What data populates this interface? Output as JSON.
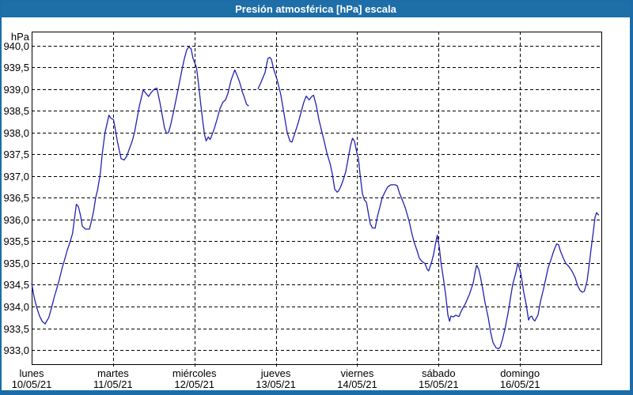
{
  "window": {
    "title": "Presión atmosférica [hPa] escala"
  },
  "colors": {
    "titlebar": "#1E6EA8",
    "window_frame": "#1B6CA8",
    "plot_background": "#FFFFFF",
    "plot_border": "#000000",
    "gridline": "#000000",
    "line": "#2222B2",
    "title_text": "#FFFFFF",
    "axis_text": "#000000"
  },
  "chart_data": {
    "type": "line",
    "title": "Presión atmosférica [hPa] escala",
    "ylabel": "hPa",
    "xlabel": "",
    "ylim": [
      933.0,
      940.0
    ],
    "ytick_step": 0.5,
    "y_tick_labels": [
      "940,0",
      "939,5",
      "939,0",
      "938,5",
      "938,0",
      "937,5",
      "937,0",
      "936,5",
      "936,0",
      "935,5",
      "935,0",
      "934,5",
      "934,0",
      "933,5",
      "933,0"
    ],
    "xlim_days": [
      0,
      7
    ],
    "x_days": [
      {
        "weekday": "lunes",
        "date": "10/05/21"
      },
      {
        "weekday": "martes",
        "date": "11/05/21"
      },
      {
        "weekday": "miércoles",
        "date": "12/05/21"
      },
      {
        "weekday": "jueves",
        "date": "13/05/21"
      },
      {
        "weekday": "viernes",
        "date": "14/05/21"
      },
      {
        "weekday": "sábado",
        "date": "15/05/21"
      },
      {
        "weekday": "domingo",
        "date": "16/05/21"
      }
    ],
    "grid": "dashed horizontal line at every 0.5 hPa, dashed vertical line at every day start",
    "legend": "none",
    "series": [
      {
        "name": "presión atmosférica",
        "units": "hPa",
        "x_units": "days since lunes 10/05/21 00:00",
        "note": "two segments: data gap Wednesday evening between t=2.667 and t=2.78",
        "segments": [
          [
            [
              0,
              934.53
            ],
            [
              0.032,
              934.2
            ],
            [
              0.065,
              933.96
            ],
            [
              0.097,
              933.78
            ],
            [
              0.129,
              933.66
            ],
            [
              0.165,
              933.6
            ],
            [
              0.211,
              933.75
            ],
            [
              0.243,
              933.96
            ],
            [
              0.275,
              934.2
            ],
            [
              0.308,
              934.41
            ],
            [
              0.34,
              934.62
            ],
            [
              0.372,
              934.87
            ],
            [
              0.405,
              935.08
            ],
            [
              0.437,
              935.29
            ],
            [
              0.47,
              935.47
            ],
            [
              0.503,
              935.68
            ],
            [
              0.525,
              936.0
            ],
            [
              0.549,
              936.35
            ],
            [
              0.574,
              936.3
            ],
            [
              0.6,
              936.1
            ],
            [
              0.622,
              935.85
            ],
            [
              0.661,
              935.78
            ],
            [
              0.71,
              935.78
            ],
            [
              0.729,
              935.92
            ],
            [
              0.761,
              936.19
            ],
            [
              0.787,
              936.5
            ],
            [
              0.81,
              936.68
            ],
            [
              0.843,
              937.05
            ],
            [
              0.868,
              937.52
            ],
            [
              0.901,
              938.0
            ],
            [
              0.95,
              938.4
            ],
            [
              0.972,
              938.33
            ],
            [
              1.005,
              938.3
            ],
            [
              1.026,
              938.1
            ],
            [
              1.053,
              937.8
            ],
            [
              1.099,
              937.4
            ],
            [
              1.137,
              937.37
            ],
            [
              1.167,
              937.45
            ],
            [
              1.196,
              937.6
            ],
            [
              1.232,
              937.78
            ],
            [
              1.264,
              938.0
            ],
            [
              1.293,
              938.3
            ],
            [
              1.322,
              938.6
            ],
            [
              1.371,
              938.98
            ],
            [
              1.405,
              938.9
            ],
            [
              1.436,
              938.83
            ],
            [
              1.468,
              938.92
            ],
            [
              1.507,
              939.0
            ],
            [
              1.539,
              939.02
            ],
            [
              1.575,
              938.7
            ],
            [
              1.604,
              938.4
            ],
            [
              1.633,
              938.1
            ],
            [
              1.658,
              937.98
            ],
            [
              1.682,
              938.0
            ],
            [
              1.711,
              938.2
            ],
            [
              1.75,
              938.54
            ],
            [
              1.784,
              938.85
            ],
            [
              1.815,
              939.14
            ],
            [
              1.847,
              939.45
            ],
            [
              1.876,
              939.7
            ],
            [
              1.906,
              939.9
            ],
            [
              1.93,
              939.97
            ],
            [
              1.959,
              939.93
            ],
            [
              1.983,
              939.7
            ],
            [
              2.025,
              939.5
            ],
            [
              2.051,
              939.1
            ],
            [
              2.074,
              938.72
            ],
            [
              2.1,
              938.3
            ],
            [
              2.124,
              937.95
            ],
            [
              2.144,
              937.81
            ],
            [
              2.171,
              937.9
            ],
            [
              2.192,
              937.84
            ],
            [
              2.217,
              937.95
            ],
            [
              2.246,
              938.1
            ],
            [
              2.285,
              938.35
            ],
            [
              2.314,
              938.55
            ],
            [
              2.35,
              938.7
            ],
            [
              2.382,
              938.75
            ],
            [
              2.411,
              938.9
            ],
            [
              2.45,
              939.2
            ],
            [
              2.496,
              939.44
            ],
            [
              2.528,
              939.3
            ],
            [
              2.557,
              939.15
            ],
            [
              2.586,
              938.95
            ],
            [
              2.615,
              938.8
            ],
            [
              2.641,
              938.65
            ],
            [
              2.667,
              938.61
            ]
          ],
          [
            [
              2.78,
              939.0
            ],
            [
              2.81,
              939.12
            ],
            [
              2.839,
              939.25
            ],
            [
              2.868,
              939.38
            ],
            [
              2.902,
              939.7
            ],
            [
              2.926,
              939.73
            ],
            [
              2.946,
              939.68
            ],
            [
              2.975,
              939.45
            ],
            [
              3.014,
              939.23
            ],
            [
              3.062,
              938.87
            ],
            [
              3.111,
              938.32
            ],
            [
              3.14,
              938.0
            ],
            [
              3.174,
              937.8
            ],
            [
              3.198,
              937.78
            ],
            [
              3.228,
              937.95
            ],
            [
              3.276,
              938.23
            ],
            [
              3.315,
              938.5
            ],
            [
              3.344,
              938.7
            ],
            [
              3.374,
              938.84
            ],
            [
              3.41,
              938.75
            ],
            [
              3.442,
              938.83
            ],
            [
              3.464,
              938.86
            ],
            [
              3.5,
              938.6
            ],
            [
              3.529,
              938.3
            ],
            [
              3.568,
              938.0
            ],
            [
              3.597,
              937.78
            ],
            [
              3.631,
              937.5
            ],
            [
              3.665,
              937.3
            ],
            [
              3.694,
              937.05
            ],
            [
              3.724,
              936.7
            ],
            [
              3.753,
              936.63
            ],
            [
              3.772,
              936.66
            ],
            [
              3.796,
              936.75
            ],
            [
              3.821,
              936.87
            ],
            [
              3.86,
              937.1
            ],
            [
              3.889,
              937.4
            ],
            [
              3.918,
              937.7
            ],
            [
              3.942,
              937.87
            ],
            [
              3.967,
              937.8
            ],
            [
              4.0,
              937.5
            ],
            [
              4.015,
              937.4
            ],
            [
              4.035,
              937.05
            ],
            [
              4.064,
              936.6
            ],
            [
              4.088,
              936.45
            ],
            [
              4.113,
              936.4
            ],
            [
              4.132,
              936.2
            ],
            [
              4.161,
              935.9
            ],
            [
              4.186,
              935.81
            ],
            [
              4.22,
              935.8
            ],
            [
              4.249,
              936.07
            ],
            [
              4.278,
              936.28
            ],
            [
              4.307,
              936.5
            ],
            [
              4.346,
              936.65
            ],
            [
              4.375,
              936.75
            ],
            [
              4.414,
              936.8
            ],
            [
              4.463,
              936.8
            ],
            [
              4.492,
              936.78
            ],
            [
              4.521,
              936.6
            ],
            [
              4.55,
              936.47
            ],
            [
              4.589,
              936.28
            ],
            [
              4.638,
              935.96
            ],
            [
              4.667,
              935.72
            ],
            [
              4.696,
              935.5
            ],
            [
              4.735,
              935.29
            ],
            [
              4.764,
              935.11
            ],
            [
              4.793,
              935.04
            ],
            [
              4.832,
              934.99
            ],
            [
              4.861,
              934.85
            ],
            [
              4.878,
              934.82
            ],
            [
              4.91,
              934.99
            ],
            [
              4.939,
              935.2
            ],
            [
              4.968,
              935.5
            ],
            [
              4.985,
              935.64
            ],
            [
              5.01,
              935.35
            ],
            [
              5.03,
              935.0
            ],
            [
              5.06,
              934.63
            ],
            [
              5.09,
              934.23
            ],
            [
              5.115,
              933.8
            ],
            [
              5.135,
              933.66
            ],
            [
              5.153,
              933.78
            ],
            [
              5.182,
              933.76
            ],
            [
              5.211,
              933.8
            ],
            [
              5.25,
              933.77
            ],
            [
              5.279,
              933.9
            ],
            [
              5.328,
              934.06
            ],
            [
              5.377,
              934.27
            ],
            [
              5.425,
              934.54
            ],
            [
              5.455,
              934.85
            ],
            [
              5.469,
              934.95
            ],
            [
              5.494,
              934.85
            ],
            [
              5.513,
              934.69
            ],
            [
              5.542,
              934.41
            ],
            [
              5.572,
              934.08
            ],
            [
              5.61,
              933.75
            ],
            [
              5.64,
              933.41
            ],
            [
              5.669,
              933.17
            ],
            [
              5.707,
              933.05
            ],
            [
              5.736,
              933.03
            ],
            [
              5.756,
              933.06
            ],
            [
              5.785,
              933.24
            ],
            [
              5.814,
              933.47
            ],
            [
              5.853,
              933.84
            ],
            [
              5.882,
              934.18
            ],
            [
              5.911,
              934.51
            ],
            [
              5.95,
              934.78
            ],
            [
              5.974,
              935.0
            ],
            [
              6.008,
              934.78
            ],
            [
              6.028,
              934.56
            ],
            [
              6.047,
              934.32
            ],
            [
              6.076,
              934.05
            ],
            [
              6.106,
              933.69
            ],
            [
              6.125,
              933.76
            ],
            [
              6.144,
              933.78
            ],
            [
              6.164,
              933.7
            ],
            [
              6.183,
              933.67
            ],
            [
              6.222,
              933.81
            ],
            [
              6.251,
              934.11
            ],
            [
              6.29,
              934.41
            ],
            [
              6.319,
              934.66
            ],
            [
              6.348,
              934.9
            ],
            [
              6.387,
              935.11
            ],
            [
              6.417,
              935.29
            ],
            [
              6.451,
              935.44
            ],
            [
              6.475,
              935.42
            ],
            [
              6.494,
              935.29
            ],
            [
              6.533,
              935.11
            ],
            [
              6.563,
              934.99
            ],
            [
              6.597,
              934.93
            ],
            [
              6.64,
              934.81
            ],
            [
              6.679,
              934.66
            ],
            [
              6.708,
              934.48
            ],
            [
              6.738,
              934.37
            ],
            [
              6.767,
              934.33
            ],
            [
              6.791,
              934.35
            ],
            [
              6.825,
              934.59
            ],
            [
              6.854,
              935.01
            ],
            [
              6.874,
              935.32
            ],
            [
              6.903,
              935.74
            ],
            [
              6.922,
              936.05
            ],
            [
              6.942,
              936.16
            ],
            [
              6.956,
              936.12
            ],
            [
              6.971,
              936.1
            ]
          ]
        ]
      }
    ]
  }
}
